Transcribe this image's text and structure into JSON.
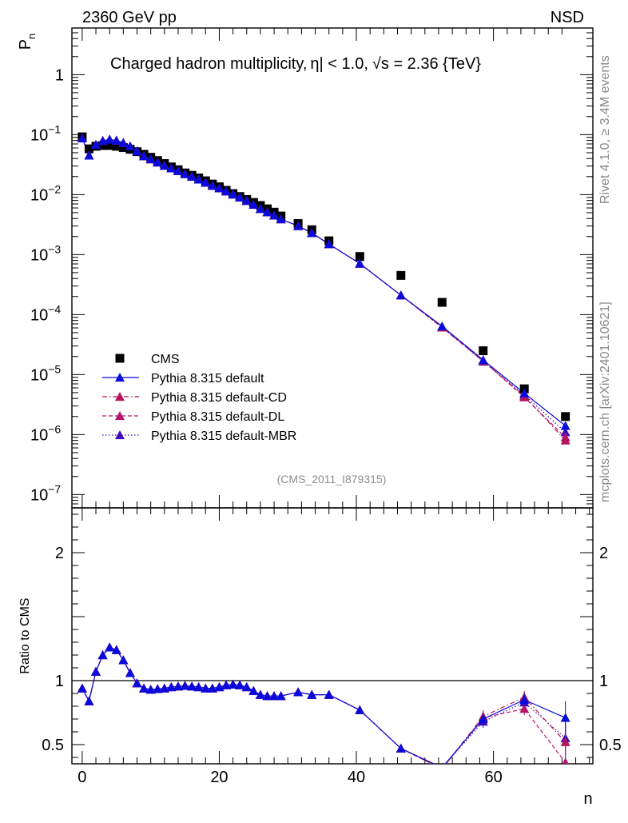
{
  "header": {
    "energy_label": "2360 GeV pp",
    "process_label": "NSD",
    "plot_title_prefix": "Charged hadron multiplicity,",
    "plot_title_rest": "| < 1.0,",
    "plot_title_tail": " = 2.36 {TeV}",
    "eta_symbol": "η",
    "sqrt_symbol": "√s",
    "rivet_note": "Rivet 4.1.0, ≥ 3.4M events",
    "mcplots_note": "mcplots.cern.ch [arXiv:2401.10621]",
    "analysis_ref": "(CMS_2011_I879315)"
  },
  "colors": {
    "cms": "#000000",
    "default": "#0a0adc",
    "cd": "#b4145a",
    "dl": "#b4146e",
    "mbr": "#3c0ab4"
  },
  "chart_data": [
    {
      "type": "scatter",
      "panel": "main",
      "title": "Charged hadron multiplicity, |η| < 1.0, √s = 2.36 {TeV}",
      "xlabel": "n",
      "ylabel": "P_n",
      "yscale": "log",
      "xlim": [
        -1.5,
        74.5
      ],
      "ylim": [
        6e-08,
        6
      ],
      "ytick_labels": [
        "10^-7",
        "10^-6",
        "10^-5",
        "10^-4",
        "10^-3",
        "10^-2",
        "10^-1",
        "1"
      ],
      "legend_position": "bottom-left",
      "x": [
        0,
        1,
        2,
        3,
        4,
        5,
        6,
        7,
        8,
        9,
        10,
        11,
        12,
        13,
        14,
        15,
        16,
        17,
        18,
        19,
        20,
        21,
        22,
        23,
        24,
        25,
        26,
        27,
        28,
        29,
        31.5,
        33.5,
        36,
        40.5,
        46.5,
        52.5,
        58.5,
        64.5,
        70.5
      ],
      "series": [
        {
          "name": "CMS",
          "style": "marker",
          "values": [
            0.092,
            0.058,
            0.064,
            0.066,
            0.066,
            0.064,
            0.061,
            0.057,
            0.052,
            0.047,
            0.042,
            0.037,
            0.033,
            0.029,
            0.026,
            0.023,
            0.021,
            0.019,
            0.017,
            0.015,
            0.0135,
            0.0118,
            0.0104,
            0.0093,
            0.0083,
            0.0074,
            0.0066,
            0.0058,
            0.0051,
            0.0044,
            0.0033,
            0.0026,
            0.0017,
            0.00093,
            0.00045,
            0.00016,
            2.5e-05,
            5.8e-06,
            2e-06
          ]
        },
        {
          "name": "Pythia 8.315 default",
          "style": "solid",
          "values": [
            0.087,
            0.045,
            0.068,
            0.079,
            0.083,
            0.08,
            0.073,
            0.064,
            0.053,
            0.044,
            0.039,
            0.0345,
            0.0305,
            0.0275,
            0.0248,
            0.0221,
            0.02,
            0.0179,
            0.0159,
            0.0141,
            0.0128,
            0.0114,
            0.0101,
            0.009,
            0.0079,
            0.0068,
            0.0058,
            0.0051,
            0.0045,
            0.0039,
            0.003,
            0.0023,
            0.0015,
            0.00071,
            0.00021,
            6.4e-05,
            1.75e-05,
            4.9e-06,
            1.4e-06
          ]
        },
        {
          "name": "Pythia 8.315 default-CD",
          "style": "dashdot",
          "values": [
            0.087,
            0.045,
            0.068,
            0.079,
            0.083,
            0.08,
            0.073,
            0.064,
            0.053,
            0.044,
            0.039,
            0.0345,
            0.0305,
            0.0275,
            0.0248,
            0.0221,
            0.02,
            0.0179,
            0.0159,
            0.0141,
            0.0128,
            0.0114,
            0.0101,
            0.009,
            0.0079,
            0.0068,
            0.0058,
            0.0051,
            0.0045,
            0.0039,
            0.003,
            0.0023,
            0.0015,
            0.00071,
            0.00021,
            6.1e-05,
            1.68e-05,
            4.4e-06,
            8e-07
          ]
        },
        {
          "name": "Pythia 8.315 default-DL",
          "style": "dashed",
          "values": [
            0.087,
            0.045,
            0.068,
            0.079,
            0.083,
            0.08,
            0.073,
            0.064,
            0.053,
            0.044,
            0.039,
            0.0345,
            0.0305,
            0.0275,
            0.0248,
            0.0221,
            0.02,
            0.0179,
            0.0159,
            0.0141,
            0.0128,
            0.0114,
            0.0101,
            0.009,
            0.0079,
            0.0068,
            0.0058,
            0.0051,
            0.0045,
            0.0039,
            0.003,
            0.0023,
            0.0015,
            0.00071,
            0.00021,
            6.1e-05,
            1.7e-05,
            4.2e-06,
            9e-07
          ]
        },
        {
          "name": "Pythia 8.315 default-MBR",
          "style": "dotted",
          "values": [
            0.087,
            0.045,
            0.068,
            0.079,
            0.083,
            0.08,
            0.073,
            0.064,
            0.053,
            0.044,
            0.039,
            0.0345,
            0.0305,
            0.0275,
            0.0248,
            0.0221,
            0.02,
            0.0179,
            0.0159,
            0.0141,
            0.0128,
            0.0114,
            0.0101,
            0.009,
            0.0079,
            0.0068,
            0.0058,
            0.0051,
            0.0045,
            0.0039,
            0.003,
            0.0023,
            0.0015,
            0.00071,
            0.00021,
            6.3e-05,
            1.65e-05,
            4.6e-06,
            1.1e-06
          ]
        }
      ]
    },
    {
      "type": "line",
      "panel": "ratio",
      "xlabel": "n",
      "ylabel": "Ratio to CMS",
      "ylim": [
        0.35,
        2.35
      ],
      "ytick_labels": [
        "0.5",
        "1",
        "2"
      ],
      "xtick_labels": [
        "0",
        "20",
        "40",
        "60"
      ],
      "reference_line": 1,
      "x": [
        0,
        1,
        2,
        3,
        4,
        5,
        6,
        7,
        8,
        9,
        10,
        11,
        12,
        13,
        14,
        15,
        16,
        17,
        18,
        19,
        20,
        21,
        22,
        23,
        24,
        25,
        26,
        27,
        28,
        29,
        31.5,
        33.5,
        36,
        40.5,
        46.5,
        52.5,
        58.5,
        64.5,
        70.5
      ],
      "series": [
        {
          "name": "Pythia 8.315 default",
          "style": "solid",
          "values": [
            0.94,
            0.84,
            1.07,
            1.2,
            1.26,
            1.24,
            1.16,
            1.06,
            0.98,
            0.94,
            0.93,
            0.935,
            0.94,
            0.95,
            0.955,
            0.96,
            0.955,
            0.95,
            0.94,
            0.94,
            0.95,
            0.965,
            0.97,
            0.965,
            0.95,
            0.92,
            0.89,
            0.88,
            0.88,
            0.88,
            0.91,
            0.89,
            0.89,
            0.77,
            0.47,
            0.32,
            0.7,
            0.85,
            0.71
          ]
        },
        {
          "name": "Pythia 8.315 default-CD",
          "style": "dashdot",
          "values": [
            0.94,
            0.84,
            1.07,
            1.2,
            1.26,
            1.24,
            1.16,
            1.06,
            0.98,
            0.94,
            0.93,
            0.935,
            0.94,
            0.95,
            0.955,
            0.96,
            0.955,
            0.95,
            0.94,
            0.94,
            0.95,
            0.965,
            0.97,
            0.965,
            0.95,
            0.92,
            0.89,
            0.88,
            0.88,
            0.88,
            0.91,
            0.89,
            0.89,
            0.77,
            0.47,
            0.31,
            0.72,
            0.87,
            0.52
          ]
        },
        {
          "name": "Pythia 8.315 default-DL",
          "style": "dashed",
          "values": [
            0.94,
            0.84,
            1.07,
            1.2,
            1.26,
            1.24,
            1.16,
            1.06,
            0.98,
            0.94,
            0.93,
            0.935,
            0.94,
            0.95,
            0.955,
            0.96,
            0.955,
            0.95,
            0.94,
            0.94,
            0.95,
            0.965,
            0.97,
            0.965,
            0.95,
            0.92,
            0.89,
            0.88,
            0.88,
            0.88,
            0.91,
            0.89,
            0.89,
            0.77,
            0.47,
            0.31,
            0.71,
            0.78,
            0.36
          ]
        },
        {
          "name": "Pythia 8.315 default-MBR",
          "style": "dotted",
          "values": [
            0.94,
            0.84,
            1.07,
            1.2,
            1.26,
            1.24,
            1.16,
            1.06,
            0.98,
            0.94,
            0.93,
            0.935,
            0.94,
            0.95,
            0.955,
            0.96,
            0.955,
            0.95,
            0.94,
            0.94,
            0.95,
            0.965,
            0.97,
            0.965,
            0.95,
            0.92,
            0.89,
            0.88,
            0.88,
            0.88,
            0.91,
            0.89,
            0.89,
            0.77,
            0.47,
            0.32,
            0.68,
            0.83,
            0.55
          ]
        }
      ]
    }
  ]
}
